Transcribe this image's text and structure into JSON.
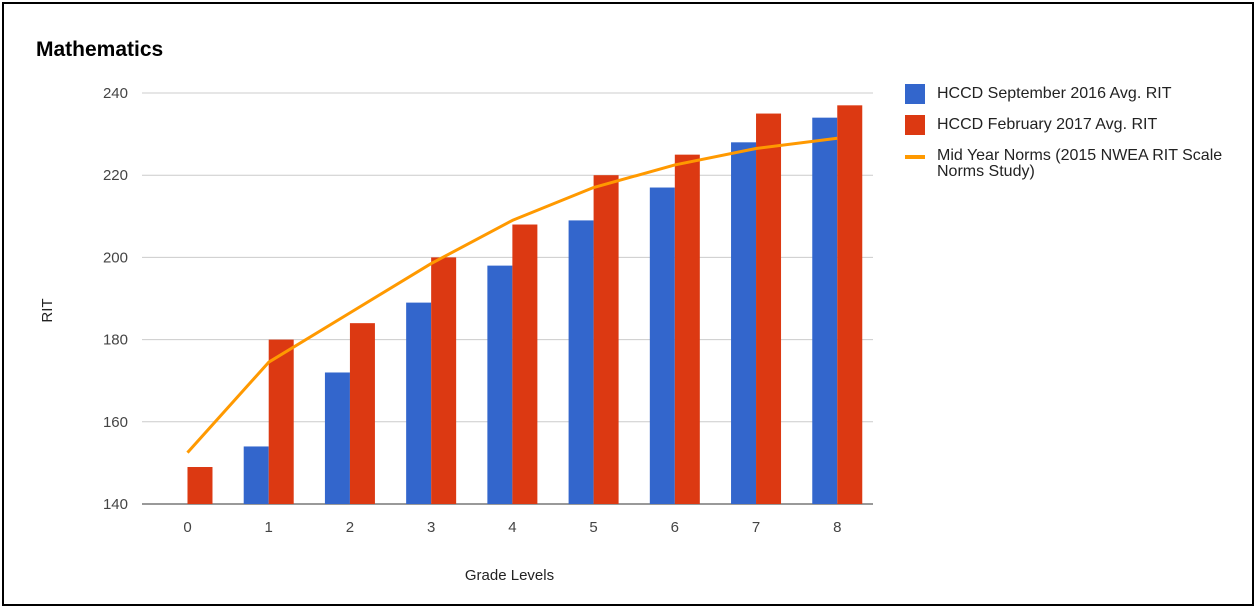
{
  "chart_data": {
    "type": "bar",
    "title": "Mathematics",
    "xlabel": "Grade Levels",
    "ylabel": "RIT",
    "categories": [
      "0",
      "1",
      "2",
      "3",
      "4",
      "5",
      "6",
      "7",
      "8"
    ],
    "yticks": [
      "140",
      "160",
      "180",
      "200",
      "220",
      "240"
    ],
    "ylim": [
      140,
      240
    ],
    "grid": true,
    "legend_position": "right",
    "series": [
      {
        "name": "HCCD September 2016 Avg. RIT",
        "kind": "bar",
        "color": "#3366cc",
        "values": [
          null,
          154,
          172,
          189,
          198,
          209,
          217,
          228,
          234
        ]
      },
      {
        "name": "HCCD February 2017 Avg. RIT",
        "kind": "bar",
        "color": "#dc3912",
        "values": [
          149,
          180,
          184,
          200,
          208,
          220,
          225,
          235,
          237
        ]
      },
      {
        "name": "Mid Year Norms (2015 NWEA RIT Scale Norms Study)",
        "kind": "line",
        "color": "#ff9900",
        "values": [
          152.5,
          174.5,
          186.5,
          198.5,
          209,
          217,
          222.5,
          226.5,
          229
        ]
      }
    ]
  }
}
